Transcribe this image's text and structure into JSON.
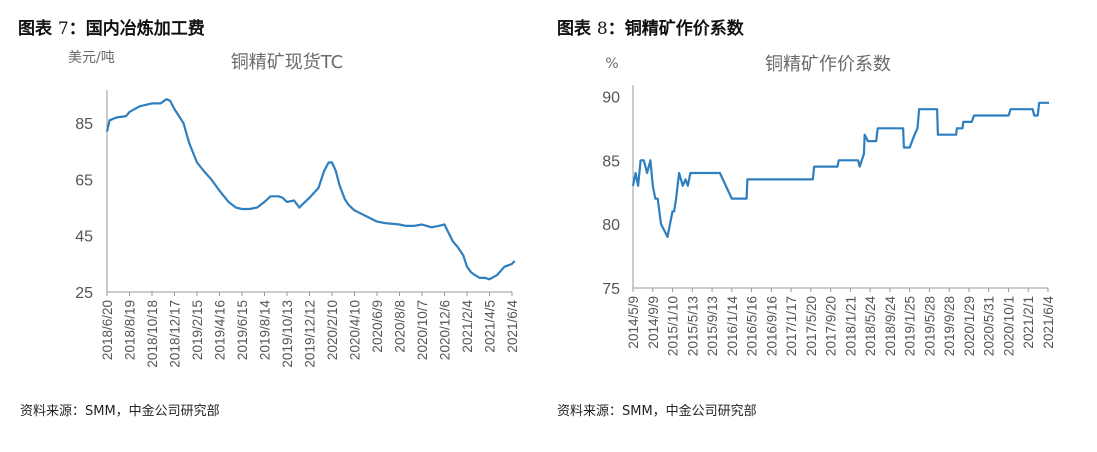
{
  "figures": [
    {
      "label": "图表",
      "number": "7",
      "title": "国内冶炼加工费",
      "source": "资料来源：SMM，中金公司研究部"
    },
    {
      "label": "图表",
      "number": "8",
      "title": "铜精矿作价系数",
      "source": "资料来源：SMM，中金公司研究部"
    }
  ],
  "chart_data": [
    {
      "type": "line",
      "title": "铜精矿现货TC",
      "unit_label": "美元/吨",
      "ylim": [
        25,
        95
      ],
      "yticks": [
        "25",
        "45",
        "65",
        "85"
      ],
      "x_ticks": [
        "2018/6/20",
        "2018/8/19",
        "2018/10/18",
        "2018/12/17",
        "2019/2/15",
        "2019/4/16",
        "2019/6/15",
        "2019/8/14",
        "2019/10/13",
        "2019/12/12",
        "2020/2/10",
        "2020/4/10",
        "2020/6/9",
        "2020/8/8",
        "2020/10/7",
        "2020/12/6",
        "2021/2/4",
        "2021/4/5",
        "2021/6/4"
      ],
      "color": "#2e7fc0",
      "grid": false,
      "legend": "none",
      "series": [
        {
          "x": [
            "2018/6/20",
            "2018/6/27",
            "2018/7/15",
            "2018/8/10",
            "2018/8/19",
            "2018/9/15",
            "2018/10/18",
            "2018/11/10",
            "2018/11/25",
            "2018/12/5",
            "2018/12/17",
            "2019/1/10",
            "2019/1/25",
            "2019/2/15",
            "2019/3/5",
            "2019/3/25",
            "2019/4/16",
            "2019/5/10",
            "2019/5/30",
            "2019/6/15",
            "2019/7/5",
            "2019/7/25",
            "2019/8/14",
            "2019/8/30",
            "2019/9/20",
            "2019/10/1",
            "2019/10/13",
            "2019/11/1",
            "2019/11/15",
            "2019/11/22",
            "2019/12/12",
            "2020/1/5",
            "2020/1/20",
            "2020/2/1",
            "2020/2/10",
            "2020/2/20",
            "2020/3/1",
            "2020/3/15",
            "2020/3/25",
            "2020/4/10",
            "2020/4/25",
            "2020/5/10",
            "2020/6/9",
            "2020/7/1",
            "2020/8/8",
            "2020/8/25",
            "2020/9/15",
            "2020/10/7",
            "2020/11/1",
            "2020/11/20",
            "2020/12/6",
            "2020/12/15",
            "2020/12/28",
            "2021/1/10",
            "2021/1/25",
            "2021/2/4",
            "2021/2/15",
            "2021/2/25",
            "2021/3/10",
            "2021/3/25",
            "2021/4/5",
            "2021/4/25",
            "2021/5/15",
            "2021/6/4",
            "2021/6/11"
          ],
          "values": [
            82,
            86,
            87,
            87.5,
            89,
            91,
            92,
            92,
            93.5,
            93,
            90,
            85,
            78,
            71,
            68,
            65,
            61,
            57,
            55,
            54.5,
            54.5,
            55,
            57,
            59,
            59,
            58.5,
            57,
            57.5,
            55,
            56,
            58.5,
            62,
            68,
            71,
            71,
            68,
            63,
            58,
            56,
            54,
            53,
            52,
            50,
            49.5,
            49,
            48.5,
            48.5,
            49,
            48,
            48.5,
            49,
            46.5,
            43,
            41,
            38,
            34,
            32,
            31,
            30,
            30,
            29.5,
            31,
            34,
            35,
            36
          ]
        }
      ]
    },
    {
      "type": "line",
      "title": "铜精矿作价系数",
      "unit_label": "%",
      "ylim": [
        75,
        90.5
      ],
      "yticks": [
        "75",
        "80",
        "85",
        "90"
      ],
      "x_ticks": [
        "2014/5/9",
        "2014/9/9",
        "2015/1/10",
        "2015/5/13",
        "2015/9/13",
        "2016/1/14",
        "2016/5/16",
        "2016/9/16",
        "2017/1/17",
        "2017/5/20",
        "2017/9/20",
        "2018/1/21",
        "2018/5/24",
        "2018/9/24",
        "2019/1/25",
        "2019/5/28",
        "2019/9/28",
        "2020/1/29",
        "2020/5/31",
        "2020/10/1",
        "2021/2/1",
        "2021/6/4"
      ],
      "color": "#2e7fc0",
      "grid": false,
      "legend": "none",
      "series": [
        {
          "x": [
            "2014/5/9",
            "2014/5/25",
            "2014/6/10",
            "2014/6/25",
            "2014/7/15",
            "2014/8/5",
            "2014/8/25",
            "2014/9/9",
            "2014/9/25",
            "2014/10/10",
            "2014/10/30",
            "2014/11/20",
            "2014/12/10",
            "2014/12/25",
            "2015/1/10",
            "2015/1/20",
            "2015/2/1",
            "2015/2/20",
            "2015/3/15",
            "2015/4/1",
            "2015/4/15",
            "2015/5/1",
            "2015/5/13",
            "2015/7/1",
            "2015/9/13",
            "2015/11/1",
            "2016/1/14",
            "2016/3/1",
            "2016/4/15",
            "2016/4/20",
            "2016/5/16",
            "2016/9/16",
            "2017/1/17",
            "2017/5/20",
            "2017/6/1",
            "2017/6/10",
            "2017/9/20",
            "2017/11/1",
            "2017/11/10",
            "2018/1/21",
            "2018/3/10",
            "2018/3/20",
            "2018/4/15",
            "2018/4/20",
            "2018/5/10",
            "2018/5/20",
            "2018/6/1",
            "2018/7/1",
            "2018/7/10",
            "2018/9/24",
            "2018/10/20",
            "2018/12/15",
            "2018/12/20",
            "2019/1/25",
            "2019/2/25",
            "2019/3/15",
            "2019/3/25",
            "2019/4/15",
            "2019/4/25",
            "2019/5/28",
            "2019/7/15",
            "2019/7/20",
            "2019/8/15",
            "2019/9/28",
            "2019/10/1",
            "2019/11/10",
            "2019/11/15",
            "2019/12/20",
            "2019/12/25",
            "2020/1/29",
            "2020/2/15",
            "2020/3/1",
            "2020/3/15",
            "2020/5/31",
            "2020/6/10",
            "2020/10/1",
            "2020/10/15",
            "2021/2/1",
            "2021/3/1",
            "2021/3/10",
            "2021/4/1",
            "2021/4/10",
            "2021/6/4",
            "2021/6/11"
          ],
          "values": [
            83,
            84,
            83,
            85,
            85,
            84,
            85,
            83,
            82,
            82,
            80,
            79.5,
            79,
            80,
            81,
            81,
            82,
            84,
            83,
            83.5,
            83,
            84,
            84,
            84,
            84,
            84,
            82,
            82,
            82,
            83.5,
            83.5,
            83.5,
            83.5,
            83.5,
            83.5,
            84.5,
            84.5,
            84.5,
            85,
            85,
            85,
            84.5,
            85.5,
            87,
            86.5,
            86.5,
            86.5,
            86.5,
            87.5,
            87.5,
            87.5,
            87.5,
            86,
            86,
            87,
            87.5,
            89,
            89,
            89,
            89,
            89,
            87,
            87,
            87,
            87,
            87,
            87.5,
            87.5,
            88,
            88,
            88,
            88.5,
            88.5,
            88.5,
            88.5,
            88.5,
            89,
            89,
            89,
            88.5,
            88.5,
            89.5,
            89.5,
            89.5
          ]
        }
      ]
    }
  ]
}
